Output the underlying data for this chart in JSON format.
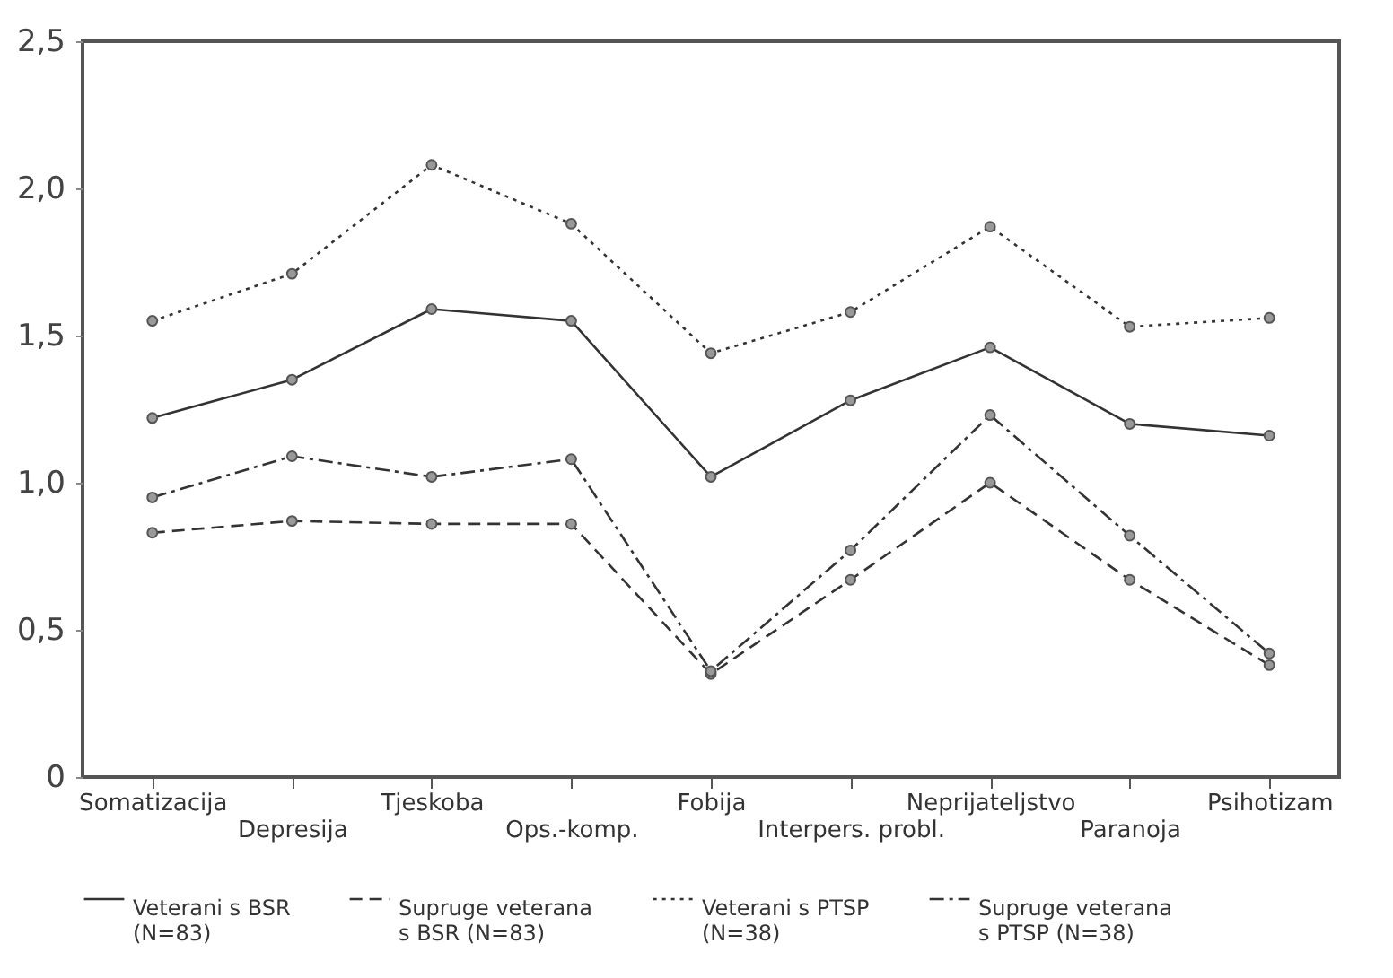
{
  "chart_data": {
    "type": "line",
    "categories": [
      "Somatizacija",
      "Depresija",
      "Tjeskoba",
      "Ops.-komp.",
      "Fobija",
      "Interpers. probl.",
      "Neprijateljstvo",
      "Paranoja",
      "Psihotizam"
    ],
    "series": [
      {
        "name": "Veterani s BSR (N=83)",
        "color": "#333333",
        "line_style": "solid",
        "values": [
          1.22,
          1.35,
          1.59,
          1.55,
          1.02,
          1.28,
          1.46,
          1.2,
          1.16
        ]
      },
      {
        "name": "Supruge veterana s BSR (N=83)",
        "color": "#333333",
        "line_style": "dashed",
        "values": [
          0.83,
          0.87,
          0.86,
          0.86,
          0.35,
          0.67,
          1.0,
          0.67,
          0.38
        ]
      },
      {
        "name": "Veterani s PTSP (N=38)",
        "color": "#333333",
        "line_style": "dotted",
        "values": [
          1.55,
          1.71,
          2.08,
          1.88,
          1.44,
          1.58,
          1.87,
          1.53,
          1.56
        ]
      },
      {
        "name": "Supruge veterana s PTSP (N=38)",
        "color": "#333333",
        "line_style": "dashdot",
        "values": [
          0.95,
          1.09,
          1.02,
          1.08,
          0.36,
          0.77,
          1.23,
          0.82,
          0.42
        ]
      }
    ],
    "ylim": [
      0,
      2.5
    ],
    "yticks": [
      {
        "value": 0,
        "label": "0"
      },
      {
        "value": 0.5,
        "label": "0,5"
      },
      {
        "value": 1,
        "label": "1,0"
      },
      {
        "value": 1.5,
        "label": "1,5"
      },
      {
        "value": 2,
        "label": "2,0"
      },
      {
        "value": 2.5,
        "label": "2,5"
      }
    ],
    "grid": false,
    "legend": "bottom",
    "marker": "circle"
  }
}
